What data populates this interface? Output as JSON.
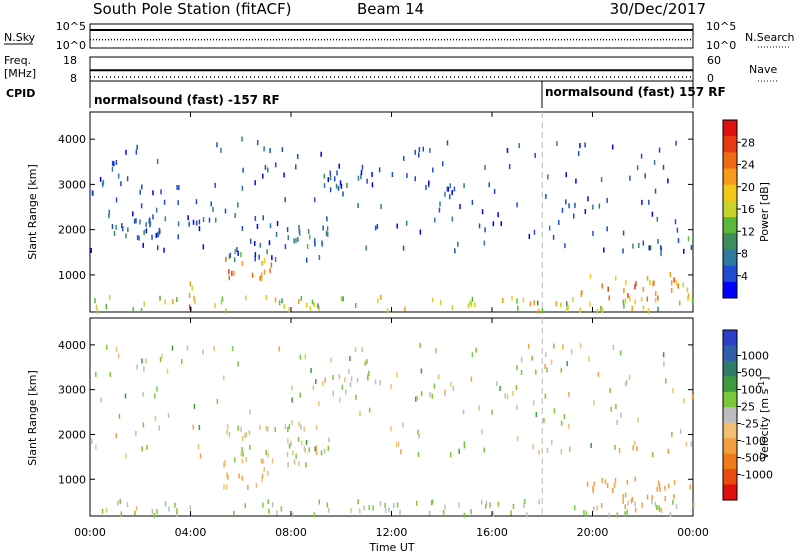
{
  "header": {
    "station": "South Pole Station (fitACF)",
    "beam": "Beam 14",
    "date": "30/Dec/2017"
  },
  "status_panels": {
    "left_labels": {
      "nsky": "N.Sky",
      "freq": "Freq.",
      "freq_unit": "[MHz]",
      "cpid": "CPID"
    },
    "right_labels": {
      "nsearch": "N.Search",
      "nave": "Nave"
    },
    "noise_ticks_left": [
      "10^5",
      "10^0"
    ],
    "noise_ticks_right": [
      "10^5",
      "10^0"
    ],
    "freq_ticks": [
      "18",
      "8"
    ],
    "nave_ticks": [
      "60",
      "0"
    ],
    "freq_ylim": [
      8,
      18
    ],
    "nave_ylim": [
      0,
      60
    ],
    "noise_level_normalized": 0.75,
    "search_level_normalized": 0.35,
    "freq_level_mhz": 12.5,
    "nave_level": 10
  },
  "cpid": {
    "segments": [
      {
        "start_hour": 0,
        "label": "normalsound (fast) -157 RF"
      },
      {
        "start_hour": 18,
        "label": "normalsound (fast) 157 RF"
      }
    ]
  },
  "axes": {
    "xlabel": "Time UT",
    "x_ticks": [
      "00:00",
      "04:00",
      "08:00",
      "12:00",
      "16:00",
      "20:00",
      "00:00"
    ],
    "x_tick_hours": [
      0,
      4,
      8,
      12,
      16,
      20,
      24
    ],
    "ylabel": "Slant Range [km]",
    "y_ticks": [
      "1000",
      "2000",
      "3000",
      "4000"
    ],
    "y_tick_values": [
      1000,
      2000,
      3000,
      4000
    ],
    "ylim": [
      180,
      4600
    ],
    "xlim": [
      0,
      24
    ],
    "mode_change_hour": 18
  },
  "power_colorbar": {
    "label": "Power [dB]",
    "ticks": [
      "4",
      "8",
      "12",
      "16",
      "20",
      "24",
      "28"
    ],
    "colors": [
      "#0000ff",
      "#1f4cd0",
      "#2f7aa0",
      "#3c8f5c",
      "#5ab83a",
      "#c7d42a",
      "#f5c71a",
      "#f59a1a",
      "#ef6a16",
      "#e83a10",
      "#e01010"
    ]
  },
  "velocity_colorbar": {
    "label": "Velocity [m s^-1]",
    "ticks": [
      "1000",
      "500",
      "100",
      "25",
      "-25",
      "-100",
      "-500",
      "-1000"
    ],
    "colors": [
      "#2a40c8",
      "#2f5fa8",
      "#2f7c6a",
      "#3e9a3e",
      "#7ac83a",
      "#bdbdbd",
      "#f0c070",
      "#f2a040",
      "#ef7a18",
      "#e84a10",
      "#e01010"
    ]
  },
  "chart_data": [
    {
      "type": "heatmap",
      "title": "",
      "xlabel": "Time UT",
      "ylabel": "Slant Range [km]",
      "xlim": [
        0,
        24
      ],
      "ylim": [
        180,
        4600
      ],
      "colorbar": "Power [dB]",
      "scatter_regions": [
        {
          "t0": 5.0,
          "t1": 7.2,
          "r0": 800,
          "r1": 1400,
          "value": 22
        },
        {
          "t0": 19.5,
          "t1": 24.0,
          "r0": 400,
          "r1": 1000,
          "value": 22
        },
        {
          "t0": 9.0,
          "t1": 11.5,
          "r0": 2900,
          "r1": 3400,
          "value": 6
        },
        {
          "t0": 13.0,
          "t1": 14.8,
          "r0": 2800,
          "r1": 3100,
          "value": 6
        },
        {
          "t0": 0.0,
          "t1": 2.5,
          "r0": 1800,
          "r1": 2400,
          "value": 6
        },
        {
          "t0": 2.0,
          "t1": 5.0,
          "r0": 1800,
          "r1": 2300,
          "value": 7
        },
        {
          "t0": 5.5,
          "t1": 9.5,
          "r0": 1300,
          "r1": 2200,
          "value": 8
        },
        {
          "t0": 21.5,
          "t1": 24.0,
          "r0": 1400,
          "r1": 1800,
          "value": 8
        },
        {
          "t0": 0.0,
          "t1": 24.0,
          "r0": 180,
          "r1": 500,
          "value": 16
        },
        {
          "t0": 3.8,
          "t1": 4.4,
          "r0": 200,
          "r1": 900,
          "value": 24
        }
      ]
    },
    {
      "type": "heatmap",
      "title": "",
      "xlabel": "Time UT",
      "ylabel": "Slant Range [km]",
      "xlim": [
        0,
        24
      ],
      "ylim": [
        180,
        4600
      ],
      "colorbar": "Velocity [m s^-1]",
      "scatter_regions": [
        {
          "t0": 5.0,
          "t1": 7.2,
          "r0": 800,
          "r1": 1400,
          "value": -100
        },
        {
          "t0": 19.5,
          "t1": 24.0,
          "r0": 300,
          "r1": 1000,
          "value": -300
        },
        {
          "t0": 21.0,
          "t1": 23.0,
          "r0": 1500,
          "r1": 1700,
          "value": -300
        },
        {
          "t0": 9.0,
          "t1": 11.5,
          "r0": 2900,
          "r1": 3400,
          "value": 0
        },
        {
          "t0": 13.0,
          "t1": 14.8,
          "r0": 2800,
          "r1": 3100,
          "value": 0
        },
        {
          "t0": 5.5,
          "t1": 9.5,
          "r0": 1300,
          "r1": 2200,
          "value": 0
        },
        {
          "t0": 0.0,
          "t1": 24.0,
          "r0": 180,
          "r1": 500,
          "value": 30
        }
      ]
    }
  ]
}
